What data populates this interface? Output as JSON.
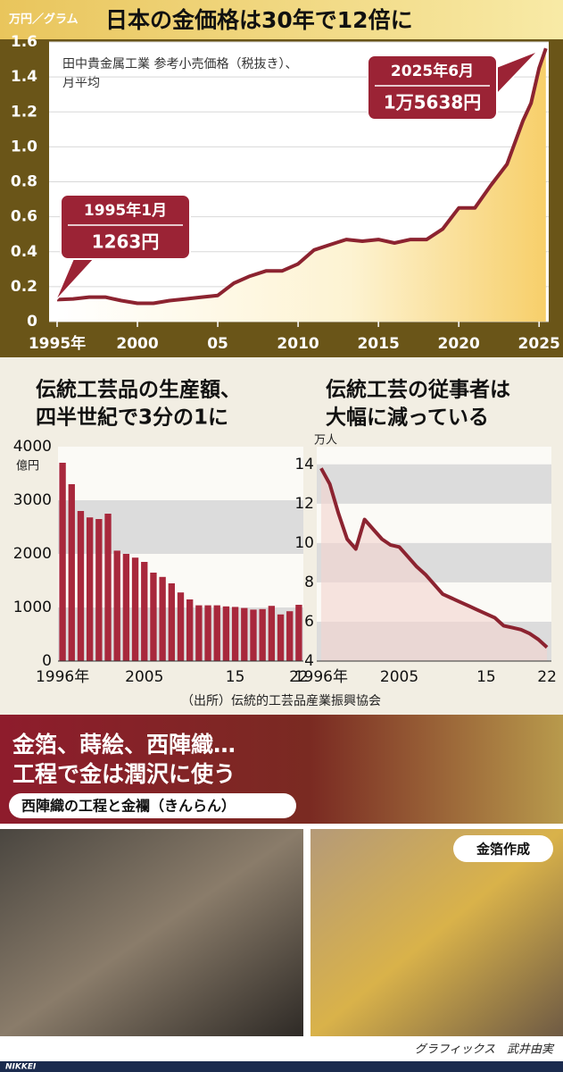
{
  "chart_data": [
    {
      "type": "area",
      "title": "日本の金価格は30年で12倍に",
      "ylabel": "万円／グラム",
      "note": [
        "田中貴金属工業 参考小売価格（税抜き）、",
        "月平均"
      ],
      "annotations": [
        [
          "1995年1月",
          "1263円"
        ],
        [
          "2025年6月",
          "1万5638円"
        ]
      ],
      "x": [
        1995,
        1996,
        1997,
        1998,
        1999,
        2000,
        2001,
        2002,
        2003,
        2004,
        2005,
        2006,
        2007,
        2008,
        2009,
        2010,
        2011,
        2012,
        2013,
        2014,
        2015,
        2016,
        2017,
        2018,
        2019,
        2020,
        2021,
        2022,
        2023,
        2024,
        2024.5,
        2025,
        2025.42
      ],
      "values": [
        0.126,
        0.13,
        0.14,
        0.14,
        0.12,
        0.105,
        0.105,
        0.12,
        0.13,
        0.14,
        0.15,
        0.22,
        0.26,
        0.29,
        0.29,
        0.33,
        0.41,
        0.44,
        0.47,
        0.46,
        0.47,
        0.45,
        0.47,
        0.47,
        0.53,
        0.65,
        0.65,
        0.78,
        0.9,
        1.15,
        1.25,
        1.45,
        1.5638
      ],
      "color": "#8c2330",
      "grid": true,
      "xlim": [
        1994.5,
        2025.6
      ],
      "xticks": [
        {
          "value": 1995,
          "label": "1995年"
        },
        2000,
        {
          "value": 2005,
          "label": "05"
        },
        2010,
        2015,
        2020,
        2025
      ],
      "xtick_labels_note": null,
      "ylim": [
        0,
        1.6
      ],
      "yticks": [
        0,
        0.2,
        0.4,
        0.6,
        0.8,
        {
          "value": 1,
          "label": "1.0"
        },
        1.2,
        1.4,
        1.6
      ]
    },
    {
      "type": "bar",
      "title": [
        "伝統工芸品の生産額、",
        "四半世紀で3分の1に"
      ],
      "ylabel": "億円",
      "categories": [
        "1996年",
        null,
        null,
        null,
        null,
        null,
        null,
        null,
        null,
        "2005",
        null,
        null,
        null,
        null,
        null,
        null,
        null,
        null,
        null,
        "15",
        null,
        null,
        null,
        null,
        null,
        null,
        "22"
      ],
      "values": [
        3700,
        3300,
        2800,
        2680,
        2650,
        2750,
        2060,
        2000,
        1930,
        1850,
        1650,
        1570,
        1450,
        1280,
        1150,
        1040,
        1040,
        1040,
        1020,
        1010,
        990,
        960,
        970,
        1030,
        870,
        930,
        1050
      ],
      "color": "#a8283c",
      "grid": "bands",
      "ylim": [
        0,
        4000
      ],
      "yticks": [
        0,
        1000,
        2000,
        3000,
        4000
      ]
    },
    {
      "type": "line",
      "title": [
        "伝統工芸の従事者は",
        "大幅に減っている"
      ],
      "ylabel": "万人",
      "categories": [
        "1996年",
        null,
        null,
        null,
        null,
        null,
        null,
        null,
        null,
        "2005",
        null,
        null,
        null,
        null,
        null,
        null,
        null,
        null,
        null,
        "15",
        null,
        null,
        null,
        null,
        null,
        null,
        "22"
      ],
      "values": [
        13.8,
        13.0,
        11.5,
        10.2,
        9.7,
        11.2,
        10.7,
        10.2,
        9.9,
        9.8,
        9.3,
        8.8,
        8.4,
        7.9,
        7.4,
        7.2,
        7.0,
        6.8,
        6.6,
        6.4,
        6.2,
        5.8,
        5.7,
        5.6,
        5.4,
        5.1,
        4.7
      ],
      "color": "#8c2330",
      "grid": "bands",
      "ylim": [
        4,
        14.9
      ],
      "yticks": [
        4,
        6,
        8,
        10,
        12,
        14
      ]
    }
  ],
  "source": "（出所）伝統的工芸品産業振興協会",
  "photo_section": {
    "title": [
      "金箔、蒔絵、西陣織…",
      "工程で金は潤沢に使う"
    ],
    "subtitle": "西陣織の工程と金襴（きんらん）",
    "photo_label": "金箔作成"
  },
  "credit": "グラフィックス　武井由実",
  "logo": "NIKKEI"
}
